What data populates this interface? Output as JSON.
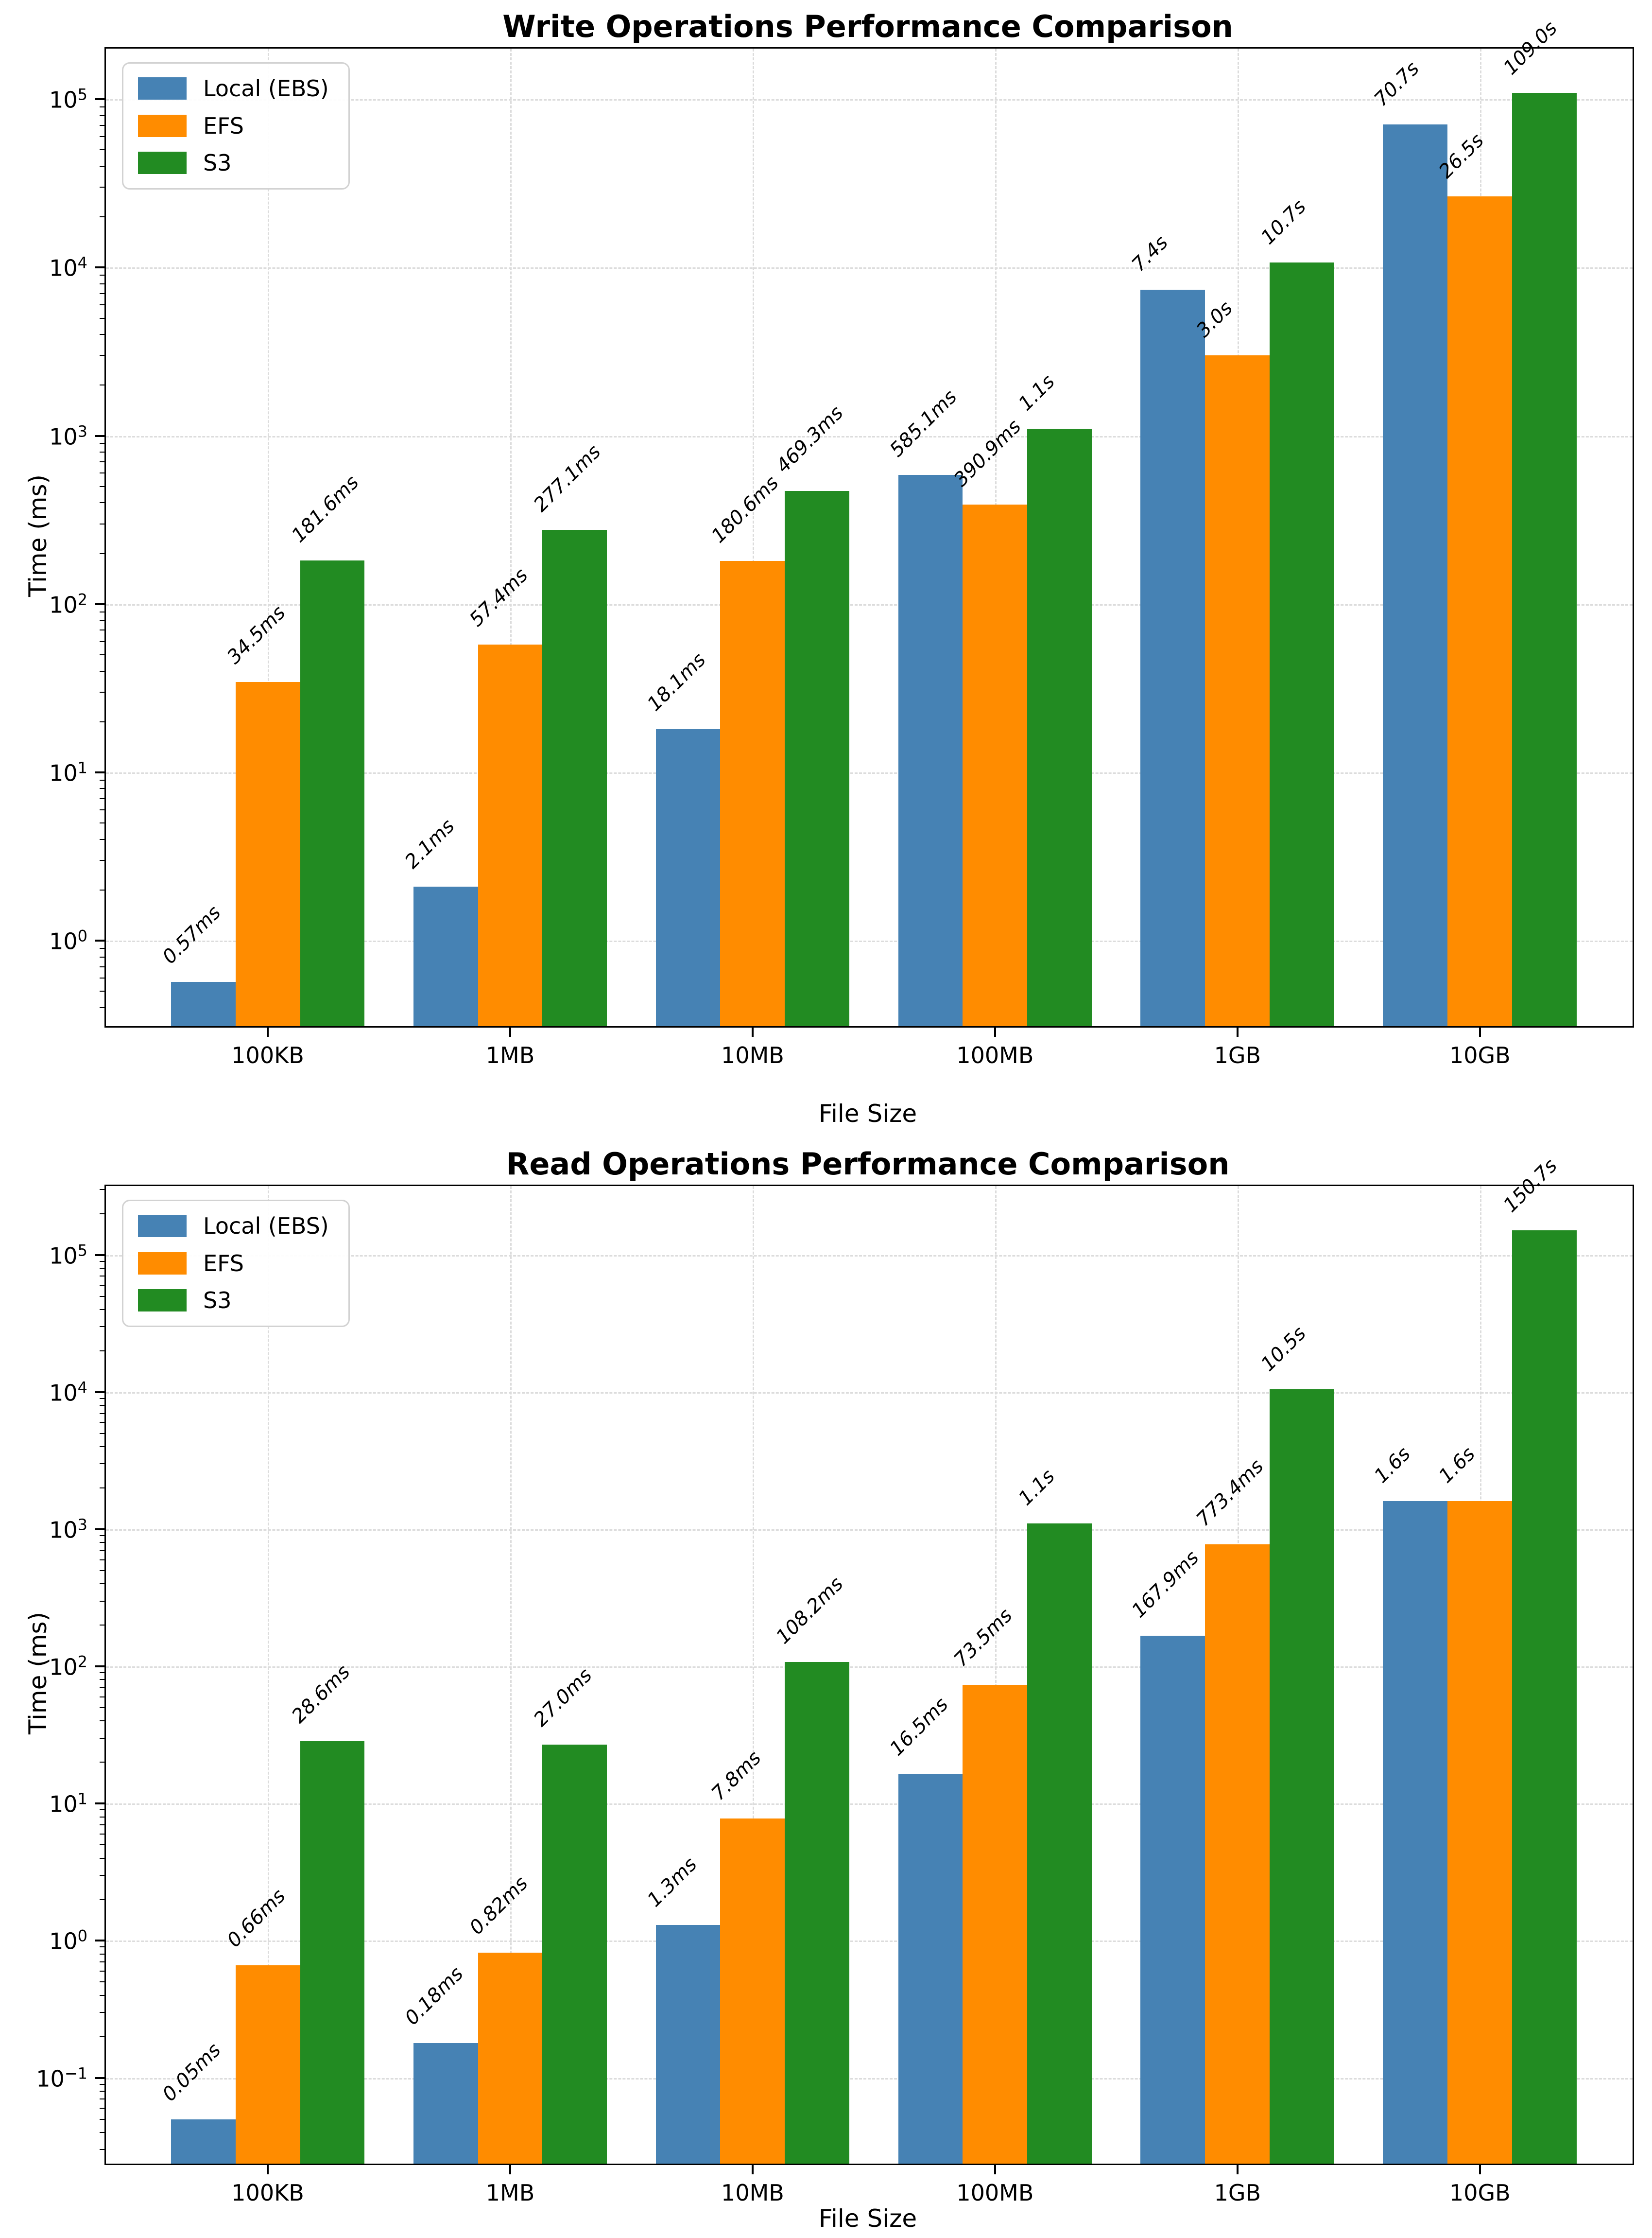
{
  "chart_data": [
    {
      "type": "bar",
      "scale": "log",
      "title": "Write Operations Performance Comparison",
      "xlabel": "File Size",
      "ylabel": "Time (ms)",
      "categories": [
        "100KB",
        "1MB",
        "10MB",
        "100MB",
        "1GB",
        "10GB"
      ],
      "legend_position": "upper left",
      "grid": true,
      "ytick_exponents": [
        0,
        1,
        2,
        3,
        4,
        5
      ],
      "ylim_log10": [
        -0.508,
        5.301
      ],
      "series": [
        {
          "name": "Local (EBS)",
          "color": "#4682B4",
          "values_ms": [
            0.57,
            2.1,
            18.1,
            585.1,
            7400,
            70700
          ],
          "labels": [
            "0.57ms",
            "2.1ms",
            "18.1ms",
            "585.1ms",
            "7.4s",
            "70.7s"
          ]
        },
        {
          "name": "EFS",
          "color": "#FF8C00",
          "values_ms": [
            34.5,
            57.4,
            180.6,
            390.9,
            3000,
            26500
          ],
          "labels": [
            "34.5ms",
            "57.4ms",
            "180.6ms",
            "390.9ms",
            "3.0s",
            "26.5s"
          ]
        },
        {
          "name": "S3",
          "color": "#228B22",
          "values_ms": [
            181.6,
            277.1,
            469.3,
            1100,
            10700,
            109000
          ],
          "labels": [
            "181.6ms",
            "277.1ms",
            "469.3ms",
            "1.1s",
            "10.7s",
            "109.0s"
          ]
        }
      ]
    },
    {
      "type": "bar",
      "scale": "log",
      "title": "Read Operations Performance Comparison",
      "xlabel": "File Size",
      "ylabel": "Time (ms)",
      "categories": [
        "100KB",
        "1MB",
        "10MB",
        "100MB",
        "1GB",
        "10GB"
      ],
      "legend_position": "upper left",
      "grid": true,
      "ytick_exponents": [
        -1,
        0,
        1,
        2,
        3,
        4,
        5
      ],
      "ylim_log10": [
        -1.625,
        5.502
      ],
      "series": [
        {
          "name": "Local (EBS)",
          "color": "#4682B4",
          "values_ms": [
            0.05,
            0.18,
            1.3,
            16.5,
            167.9,
            1600
          ],
          "labels": [
            "0.05ms",
            "0.18ms",
            "1.3ms",
            "16.5ms",
            "167.9ms",
            "1.6s"
          ]
        },
        {
          "name": "EFS",
          "color": "#FF8C00",
          "values_ms": [
            0.66,
            0.82,
            7.8,
            73.5,
            773.4,
            1600
          ],
          "labels": [
            "0.66ms",
            "0.82ms",
            "7.8ms",
            "73.5ms",
            "773.4ms",
            "1.6s"
          ]
        },
        {
          "name": "S3",
          "color": "#228B22",
          "values_ms": [
            28.6,
            27.0,
            108.2,
            1100,
            10500,
            150700
          ],
          "labels": [
            "28.6ms",
            "27.0ms",
            "108.2ms",
            "1.1s",
            "10.5s",
            "150.7s"
          ]
        }
      ]
    }
  ]
}
